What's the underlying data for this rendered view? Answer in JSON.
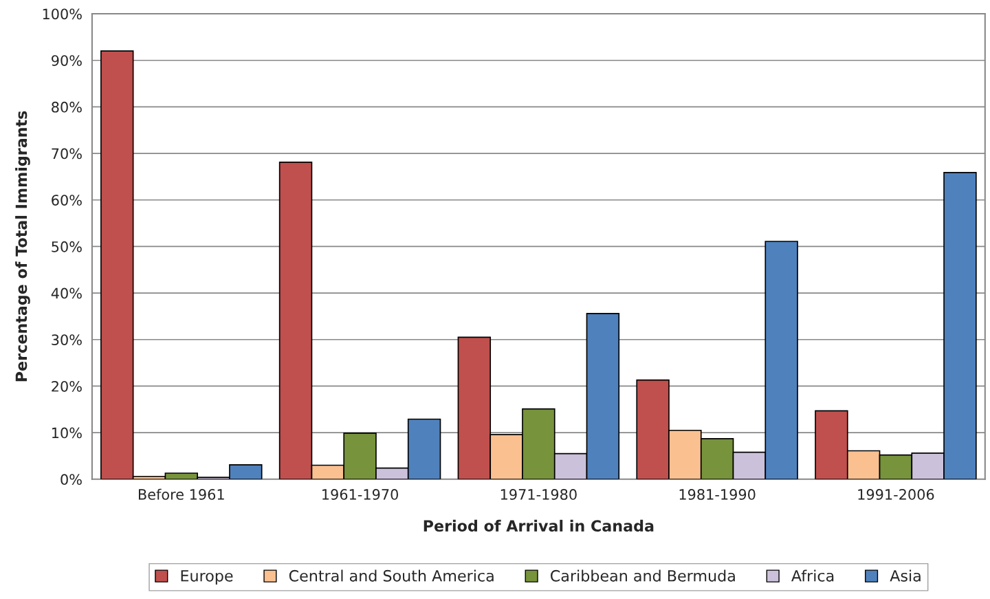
{
  "chart_data": {
    "type": "bar",
    "xlabel": "Period of Arrival in Canada",
    "ylabel": "Percentage of Total Immigrants",
    "categories": [
      "Before 1961",
      "1961-1970",
      "1971-1980",
      "1981-1990",
      "1991-2006"
    ],
    "series": [
      {
        "name": "Europe",
        "color": "#c0504d",
        "values": [
          92.0,
          68.1,
          30.5,
          21.3,
          14.7
        ]
      },
      {
        "name": "Central and South America",
        "color": "#fac090",
        "values": [
          0.6,
          3.0,
          9.6,
          10.5,
          6.1
        ]
      },
      {
        "name": "Caribbean and Bermuda",
        "color": "#77933c",
        "values": [
          1.3,
          9.9,
          15.1,
          8.7,
          5.2
        ]
      },
      {
        "name": "Africa",
        "color": "#ccc1da",
        "values": [
          0.4,
          2.4,
          5.5,
          5.8,
          5.6
        ]
      },
      {
        "name": "Asia",
        "color": "#4f81bd",
        "values": [
          3.1,
          12.9,
          35.6,
          51.1,
          65.9
        ]
      }
    ],
    "ylim": [
      0,
      100
    ],
    "yticks": [
      {
        "value": 0,
        "label": "0%"
      },
      {
        "value": 10,
        "label": "10%"
      },
      {
        "value": 20,
        "label": "20%"
      },
      {
        "value": 30,
        "label": "30%"
      },
      {
        "value": 40,
        "label": "40%"
      },
      {
        "value": 50,
        "label": "50%"
      },
      {
        "value": 60,
        "label": "60%"
      },
      {
        "value": 70,
        "label": "70%"
      },
      {
        "value": 80,
        "label": "80%"
      },
      {
        "value": 90,
        "label": "90%"
      },
      {
        "value": 100,
        "label": "100%"
      }
    ],
    "grid": "y",
    "legend": "bottom"
  }
}
